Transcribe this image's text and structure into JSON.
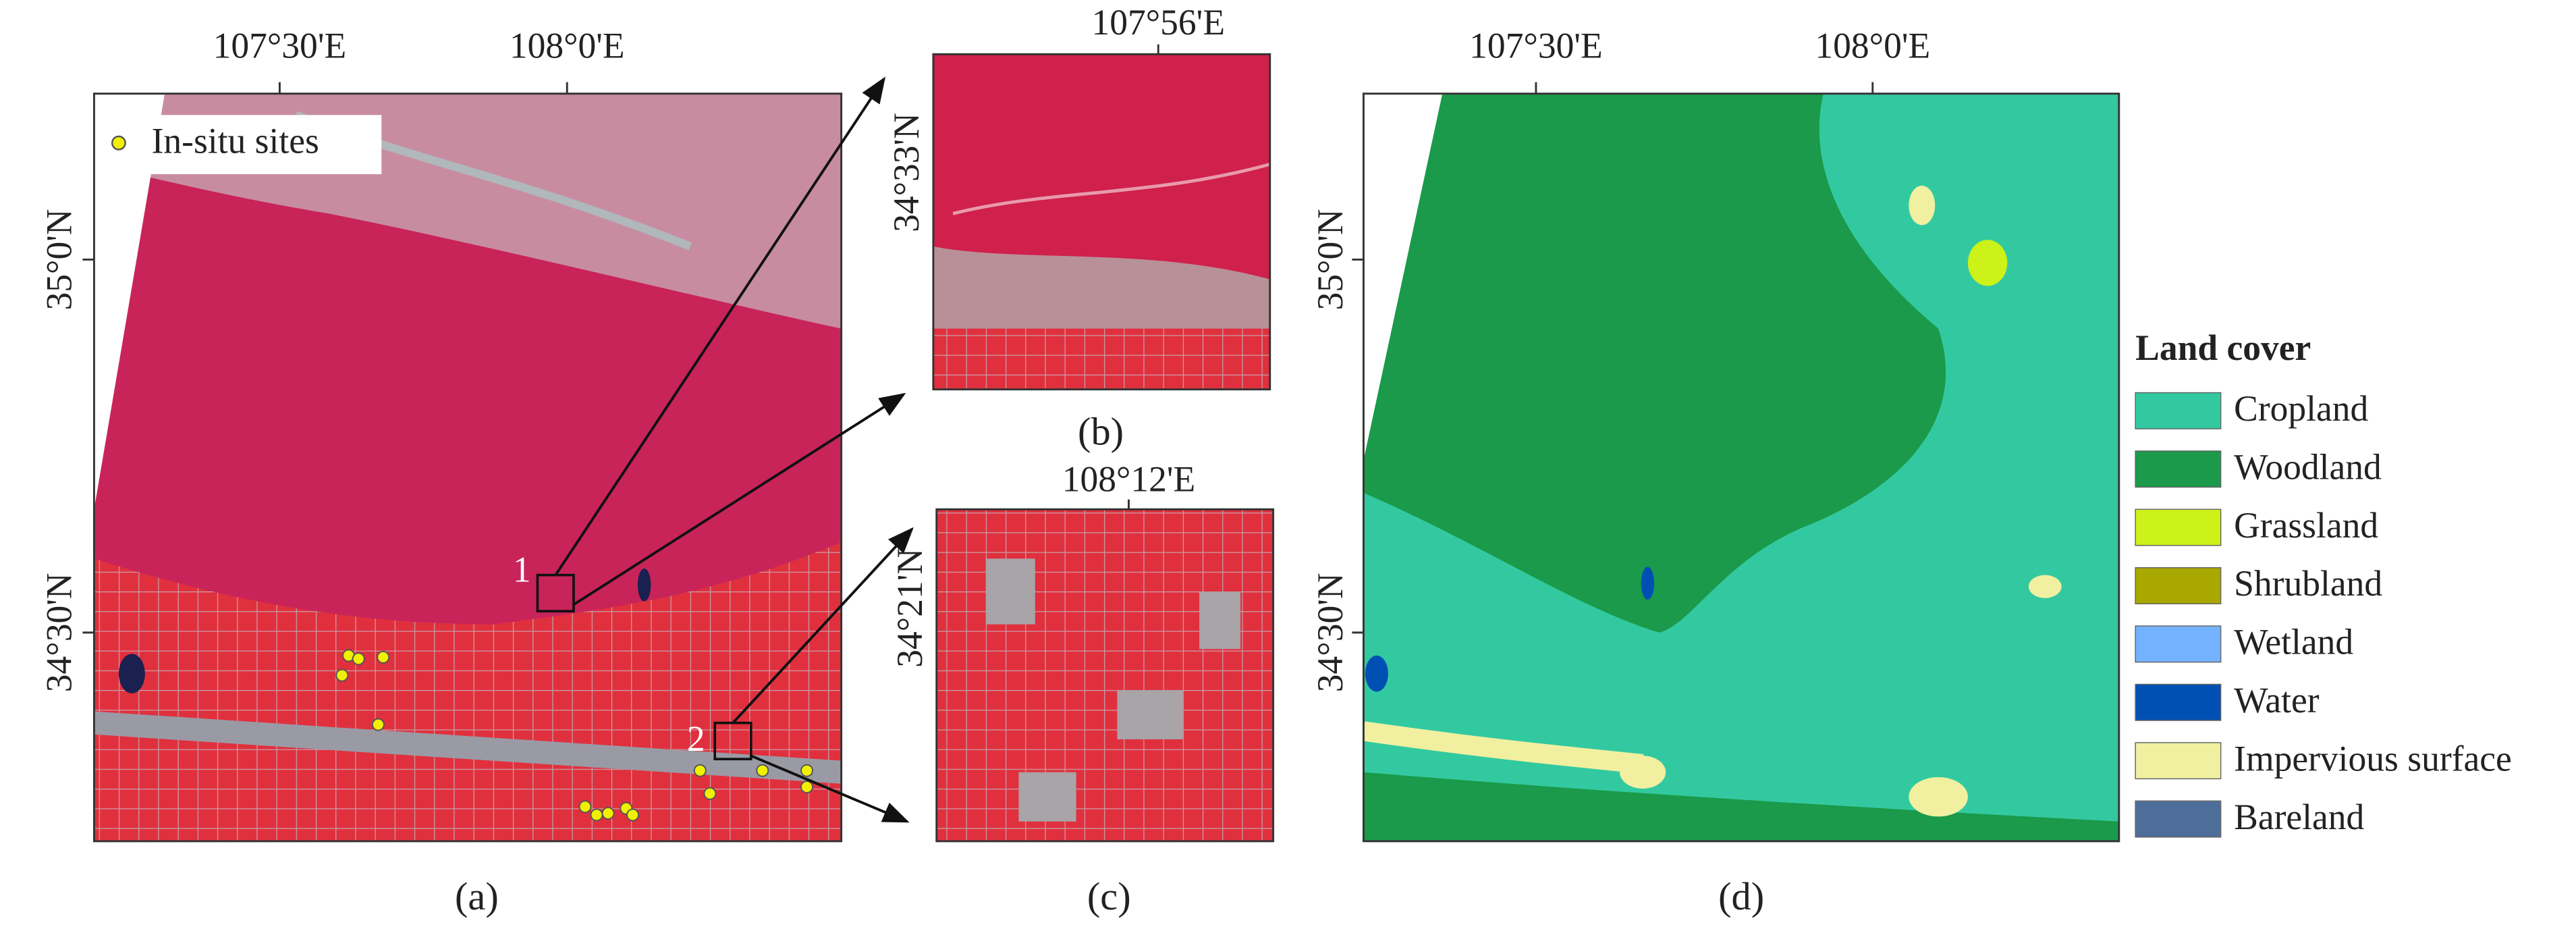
{
  "panel_a": {
    "lon_labels": [
      "107°30'E",
      "108°0'E"
    ],
    "lat_labels": [
      "35°0'N",
      "34°30'N"
    ],
    "legend": "In-situ sites",
    "boxes": [
      "1",
      "2"
    ],
    "caption": "(a)"
  },
  "panel_b": {
    "lon_label": "107°56'E",
    "lat_label": "34°33'N",
    "caption": "(b)"
  },
  "panel_c": {
    "lon_label": "108°12'E",
    "lat_label": "34°21'N",
    "caption": "(c)"
  },
  "panel_d": {
    "lon_labels": [
      "107°30'E",
      "108°0'E"
    ],
    "lat_labels": [
      "35°0'N",
      "34°30'N"
    ],
    "caption": "(d)",
    "legend": {
      "title": "Land cover",
      "items": [
        {
          "name": "Cropland",
          "color": "#33c9a0"
        },
        {
          "name": "Woodland",
          "color": "#1a9a4a"
        },
        {
          "name": "Grassland",
          "color": "#ccf21a"
        },
        {
          "name": "Shrubland",
          "color": "#a8a800"
        },
        {
          "name": "Wetland",
          "color": "#73b2ff"
        },
        {
          "name": "Water",
          "color": "#0050b4"
        },
        {
          "name": "Impervious surface",
          "color": "#f0f0a0"
        },
        {
          "name": "Bareland",
          "color": "#4e6e9a"
        }
      ]
    }
  }
}
